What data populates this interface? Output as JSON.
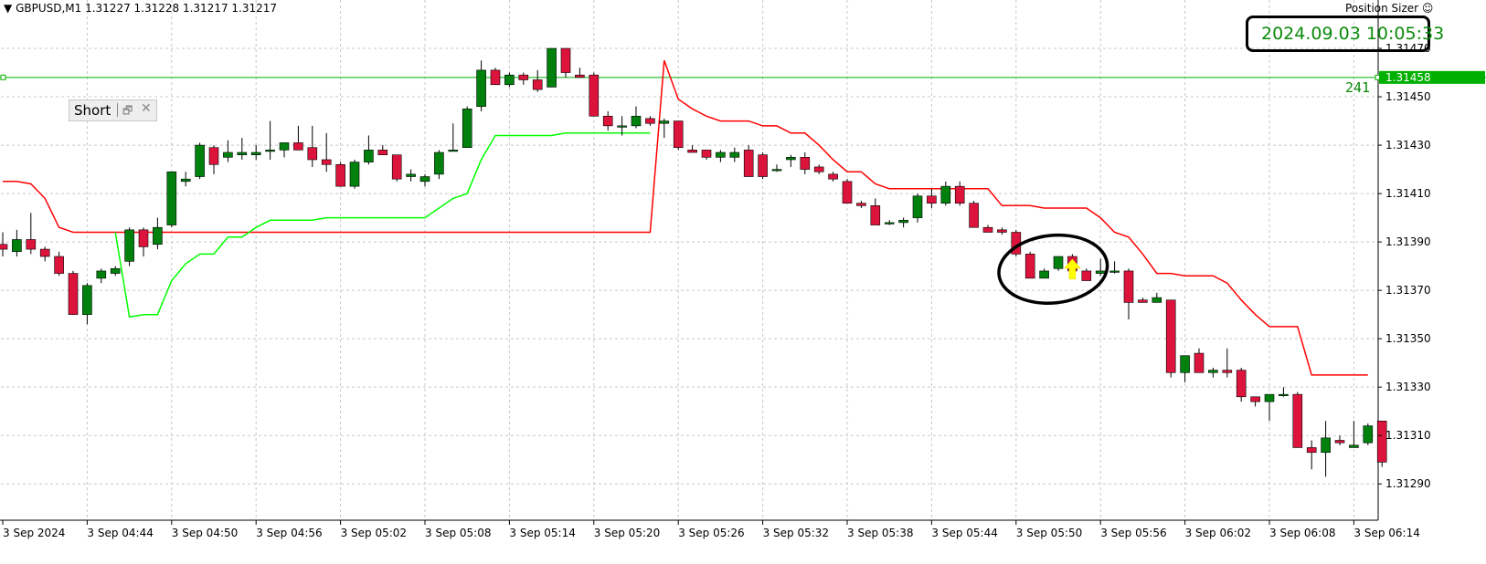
{
  "header": {
    "symbol_line": "GBPUSD,M1  1.31227 1.31228 1.31217 1.31217",
    "position_sizer": "Position Sizer ☺",
    "timestamp": "2024.09.03 10:05:33"
  },
  "short_panel": {
    "label": "Short",
    "restore_glyph": "🗗",
    "close_glyph": "✕"
  },
  "colors": {
    "bull": "#00800d",
    "bear": "#dc143c",
    "upper_line": "#ff0000",
    "lower_line": "#00ff00",
    "h_line": "#00b000",
    "grid": "#c8c8c8",
    "arrow": "#ffff00"
  },
  "chart_data": {
    "type": "candlestick",
    "symbol": "GBPUSD",
    "timeframe": "M1",
    "grid": true,
    "ylim": [
      1.31275,
      1.3149
    ],
    "y_ticks": [
      "1.31470",
      "1.31450",
      "1.31430",
      "1.31410",
      "1.31390",
      "1.31370",
      "1.31350",
      "1.31330",
      "1.31310",
      "1.31290"
    ],
    "x_ticks": [
      {
        "label": "3 Sep 2024",
        "bar": 0
      },
      {
        "label": "3 Sep 04:44",
        "bar": 6
      },
      {
        "label": "3 Sep 04:50",
        "bar": 12
      },
      {
        "label": "3 Sep 04:56",
        "bar": 18
      },
      {
        "label": "3 Sep 05:02",
        "bar": 24
      },
      {
        "label": "3 Sep 05:08",
        "bar": 30
      },
      {
        "label": "3 Sep 05:14",
        "bar": 36
      },
      {
        "label": "3 Sep 05:20",
        "bar": 42
      },
      {
        "label": "3 Sep 05:26",
        "bar": 48
      },
      {
        "label": "3 Sep 05:32",
        "bar": 54
      },
      {
        "label": "3 Sep 05:38",
        "bar": 60
      },
      {
        "label": "3 Sep 05:44",
        "bar": 66
      },
      {
        "label": "3 Sep 05:50",
        "bar": 72
      },
      {
        "label": "3 Sep 05:56",
        "bar": 78
      },
      {
        "label": "3 Sep 06:02",
        "bar": 84
      },
      {
        "label": "3 Sep 06:08",
        "bar": 90
      },
      {
        "label": "3 Sep 06:14",
        "bar": 96
      }
    ],
    "candles": [
      [
        1.31389,
        1.31394,
        1.31384,
        1.31387
      ],
      [
        1.31386,
        1.31395,
        1.31384,
        1.31391
      ],
      [
        1.31391,
        1.31402,
        1.31385,
        1.31387
      ],
      [
        1.31387,
        1.31388,
        1.31382,
        1.31384
      ],
      [
        1.31384,
        1.31386,
        1.31376,
        1.31377
      ],
      [
        1.31377,
        1.31378,
        1.3136,
        1.3136
      ],
      [
        1.3136,
        1.31373,
        1.31356,
        1.31372
      ],
      [
        1.31375,
        1.31379,
        1.31373,
        1.31378
      ],
      [
        1.31377,
        1.3138,
        1.31376,
        1.31379
      ],
      [
        1.31382,
        1.31396,
        1.3138,
        1.31395
      ],
      [
        1.31395,
        1.31396,
        1.31384,
        1.31388
      ],
      [
        1.31389,
        1.314,
        1.31387,
        1.31396
      ],
      [
        1.31397,
        1.31419,
        1.31396,
        1.31419
      ],
      [
        1.31415,
        1.31419,
        1.31413,
        1.31416
      ],
      [
        1.31417,
        1.31431,
        1.31416,
        1.3143
      ],
      [
        1.31429,
        1.3143,
        1.31418,
        1.31422
      ],
      [
        1.31425,
        1.31432,
        1.31423,
        1.31427
      ],
      [
        1.31426,
        1.31433,
        1.31424,
        1.31427
      ],
      [
        1.31426,
        1.3143,
        1.31424,
        1.31427
      ],
      [
        1.31428,
        1.3144,
        1.31424,
        1.31428
      ],
      [
        1.31428,
        1.31431,
        1.31425,
        1.31431
      ],
      [
        1.31431,
        1.31438,
        1.31428,
        1.31428
      ],
      [
        1.31429,
        1.31438,
        1.31421,
        1.31424
      ],
      [
        1.31424,
        1.31435,
        1.31419,
        1.31422
      ],
      [
        1.31422,
        1.31423,
        1.31413,
        1.31413
      ],
      [
        1.31413,
        1.31424,
        1.31412,
        1.31423
      ],
      [
        1.31423,
        1.31434,
        1.31422,
        1.31428
      ],
      [
        1.31428,
        1.3143,
        1.31426,
        1.31426
      ],
      [
        1.31426,
        1.31426,
        1.31415,
        1.31416
      ],
      [
        1.31417,
        1.3142,
        1.31415,
        1.31418
      ],
      [
        1.31415,
        1.31418,
        1.31413,
        1.31417
      ],
      [
        1.31418,
        1.31428,
        1.31416,
        1.31427
      ],
      [
        1.31428,
        1.31439,
        1.31428,
        1.31428
      ],
      [
        1.31429,
        1.31446,
        1.31429,
        1.31445
      ],
      [
        1.31446,
        1.31465,
        1.31444,
        1.31461
      ],
      [
        1.31461,
        1.31462,
        1.31455,
        1.31455
      ],
      [
        1.31455,
        1.3146,
        1.31454,
        1.31459
      ],
      [
        1.31459,
        1.3146,
        1.31455,
        1.31457
      ],
      [
        1.31457,
        1.31461,
        1.31452,
        1.31453
      ],
      [
        1.31454,
        1.3147,
        1.31454,
        1.3147
      ],
      [
        1.3147,
        1.3147,
        1.31458,
        1.3146
      ],
      [
        1.31459,
        1.31462,
        1.31458,
        1.31458
      ],
      [
        1.31459,
        1.3146,
        1.31442,
        1.31442
      ],
      [
        1.31442,
        1.31444,
        1.31436,
        1.31438
      ],
      [
        1.31438,
        1.31442,
        1.31434,
        1.31438
      ],
      [
        1.31438,
        1.31446,
        1.31437,
        1.31442
      ],
      [
        1.31441,
        1.31442,
        1.31438,
        1.31439
      ],
      [
        1.31439,
        1.31441,
        1.31433,
        1.3144
      ],
      [
        1.3144,
        1.3144,
        1.31428,
        1.31429
      ],
      [
        1.31428,
        1.3143,
        1.31427,
        1.31427
      ],
      [
        1.31428,
        1.31428,
        1.31424,
        1.31425
      ],
      [
        1.31425,
        1.31428,
        1.31423,
        1.31427
      ],
      [
        1.31425,
        1.31429,
        1.31423,
        1.31427
      ],
      [
        1.31428,
        1.3143,
        1.31417,
        1.31417
      ],
      [
        1.31426,
        1.31427,
        1.31416,
        1.31417
      ],
      [
        1.3142,
        1.31422,
        1.31419,
        1.3142
      ],
      [
        1.31424,
        1.31426,
        1.31421,
        1.31425
      ],
      [
        1.31425,
        1.31427,
        1.31418,
        1.3142
      ],
      [
        1.31421,
        1.31422,
        1.31418,
        1.31419
      ],
      [
        1.31418,
        1.31419,
        1.31415,
        1.31416
      ],
      [
        1.31415,
        1.31416,
        1.31406,
        1.31406
      ],
      [
        1.31406,
        1.31407,
        1.31404,
        1.31405
      ],
      [
        1.31405,
        1.31408,
        1.31397,
        1.31397
      ],
      [
        1.31398,
        1.31399,
        1.31397,
        1.31398
      ],
      [
        1.31398,
        1.314,
        1.31396,
        1.31399
      ],
      [
        1.314,
        1.3141,
        1.31398,
        1.31409
      ],
      [
        1.31409,
        1.31412,
        1.31404,
        1.31406
      ],
      [
        1.31406,
        1.31415,
        1.31405,
        1.31413
      ],
      [
        1.31413,
        1.31415,
        1.31405,
        1.31406
      ],
      [
        1.31406,
        1.31407,
        1.31396,
        1.31396
      ],
      [
        1.31396,
        1.31397,
        1.31394,
        1.31394
      ],
      [
        1.31395,
        1.31396,
        1.31393,
        1.31394
      ],
      [
        1.31394,
        1.31395,
        1.31384,
        1.31385
      ],
      [
        1.31385,
        1.31386,
        1.31375,
        1.31375
      ],
      [
        1.31375,
        1.31379,
        1.31375,
        1.31378
      ],
      [
        1.31379,
        1.31384,
        1.31378,
        1.31384
      ],
      [
        1.31384,
        1.31385,
        1.31378,
        1.31378
      ],
      [
        1.31378,
        1.31379,
        1.31374,
        1.31374
      ],
      [
        1.31377,
        1.31383,
        1.31376,
        1.31378
      ],
      [
        1.31378,
        1.31382,
        1.31377,
        1.31378
      ],
      [
        1.31378,
        1.31379,
        1.31358,
        1.31365
      ],
      [
        1.31366,
        1.31367,
        1.31365,
        1.31365
      ],
      [
        1.31365,
        1.31369,
        1.31365,
        1.31367
      ],
      [
        1.31366,
        1.31366,
        1.31334,
        1.31336
      ],
      [
        1.31336,
        1.31343,
        1.31332,
        1.31343
      ],
      [
        1.31344,
        1.31346,
        1.31337,
        1.31336
      ],
      [
        1.31336,
        1.31338,
        1.31334,
        1.31337
      ],
      [
        1.31337,
        1.31346,
        1.31334,
        1.31336
      ],
      [
        1.31337,
        1.31338,
        1.31324,
        1.31326
      ],
      [
        1.31326,
        1.31326,
        1.31322,
        1.31324
      ],
      [
        1.31324,
        1.31327,
        1.31316,
        1.31327
      ],
      [
        1.31327,
        1.3133,
        1.31326,
        1.31327
      ],
      [
        1.31327,
        1.31328,
        1.31305,
        1.31305
      ],
      [
        1.31305,
        1.31308,
        1.31296,
        1.31303
      ],
      [
        1.31303,
        1.31316,
        1.31293,
        1.31309
      ],
      [
        1.31308,
        1.3131,
        1.31306,
        1.31307
      ],
      [
        1.31305,
        1.31316,
        1.31305,
        1.31306
      ],
      [
        1.31307,
        1.31315,
        1.31306,
        1.31314
      ],
      [
        1.31316,
        1.31316,
        1.31297,
        1.31299
      ]
    ],
    "upper_line": [
      [
        0,
        1.31415
      ],
      [
        1,
        1.31415
      ],
      [
        2,
        1.31414
      ],
      [
        3,
        1.31408
      ],
      [
        4,
        1.31396
      ],
      [
        5,
        1.31394
      ],
      [
        6,
        1.31394
      ],
      [
        7,
        1.31394
      ],
      [
        8,
        1.31394
      ],
      [
        46,
        1.31394
      ],
      [
        47,
        1.31465
      ],
      [
        48,
        1.31449
      ],
      [
        49,
        1.31445
      ],
      [
        50,
        1.31442
      ],
      [
        51,
        1.3144
      ],
      [
        52,
        1.3144
      ],
      [
        53,
        1.3144
      ],
      [
        54,
        1.31438
      ],
      [
        55,
        1.31438
      ],
      [
        56,
        1.31435
      ],
      [
        57,
        1.31435
      ],
      [
        58,
        1.3143
      ],
      [
        59,
        1.31424
      ],
      [
        60,
        1.31419
      ],
      [
        61,
        1.31419
      ],
      [
        62,
        1.31414
      ],
      [
        63,
        1.31412
      ],
      [
        64,
        1.31412
      ],
      [
        65,
        1.31412
      ],
      [
        66,
        1.31412
      ],
      [
        67,
        1.31412
      ],
      [
        68,
        1.31412
      ],
      [
        69,
        1.31412
      ],
      [
        70,
        1.31412
      ],
      [
        71,
        1.31405
      ],
      [
        72,
        1.31405
      ],
      [
        73,
        1.31405
      ],
      [
        74,
        1.31404
      ],
      [
        75,
        1.31404
      ],
      [
        76,
        1.31404
      ],
      [
        77,
        1.31404
      ],
      [
        78,
        1.314
      ],
      [
        79,
        1.31394
      ],
      [
        80,
        1.31392
      ],
      [
        81,
        1.31385
      ],
      [
        82,
        1.31377
      ],
      [
        83,
        1.31377
      ],
      [
        84,
        1.31376
      ],
      [
        85,
        1.31376
      ],
      [
        86,
        1.31376
      ],
      [
        87,
        1.31373
      ],
      [
        88,
        1.31366
      ],
      [
        89,
        1.3136
      ],
      [
        90,
        1.31355
      ],
      [
        91,
        1.31355
      ],
      [
        92,
        1.31355
      ],
      [
        93,
        1.31335
      ],
      [
        94,
        1.31335
      ],
      [
        95,
        1.31335
      ],
      [
        96,
        1.31335
      ],
      [
        97,
        1.31335
      ]
    ],
    "lower_line": [
      [
        8,
        1.31394
      ],
      [
        9,
        1.31359
      ],
      [
        10,
        1.3136
      ],
      [
        11,
        1.3136
      ],
      [
        12,
        1.31374
      ],
      [
        13,
        1.31381
      ],
      [
        14,
        1.31385
      ],
      [
        15,
        1.31385
      ],
      [
        16,
        1.31392
      ],
      [
        17,
        1.31392
      ],
      [
        18,
        1.31396
      ],
      [
        19,
        1.31399
      ],
      [
        20,
        1.31399
      ],
      [
        21,
        1.31399
      ],
      [
        22,
        1.31399
      ],
      [
        23,
        1.314
      ],
      [
        24,
        1.314
      ],
      [
        25,
        1.314
      ],
      [
        26,
        1.314
      ],
      [
        27,
        1.314
      ],
      [
        28,
        1.314
      ],
      [
        29,
        1.314
      ],
      [
        30,
        1.314
      ],
      [
        31,
        1.31404
      ],
      [
        32,
        1.31408
      ],
      [
        33,
        1.3141
      ],
      [
        34,
        1.31424
      ],
      [
        35,
        1.31434
      ],
      [
        36,
        1.31434
      ],
      [
        37,
        1.31434
      ],
      [
        38,
        1.31434
      ],
      [
        39,
        1.31434
      ],
      [
        40,
        1.31435
      ],
      [
        41,
        1.31435
      ],
      [
        42,
        1.31435
      ],
      [
        43,
        1.31435
      ],
      [
        44,
        1.31435
      ],
      [
        45,
        1.31435
      ],
      [
        46,
        1.31435
      ]
    ],
    "h_line": {
      "price": 1.31458,
      "label": "1.31458",
      "count_label": "241"
    },
    "annotation_circle_bars": [
      72,
      77
    ],
    "arrow_bar": 76,
    "arrow_price": 1.31378
  }
}
